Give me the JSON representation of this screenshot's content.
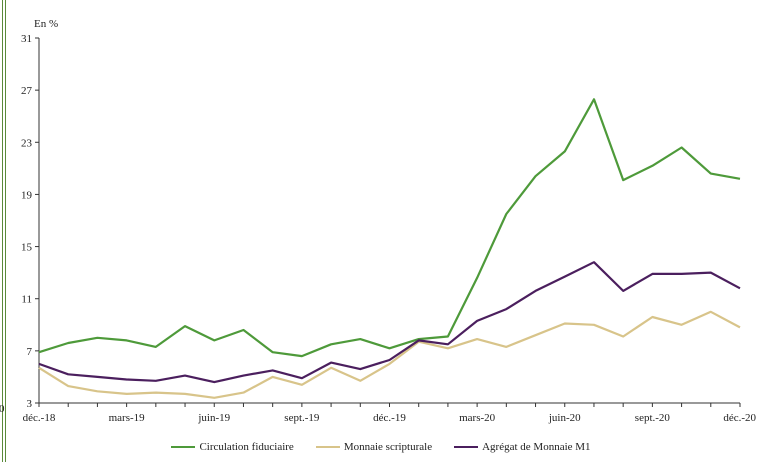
{
  "chart_data": {
    "type": "line",
    "unit_label": "En %",
    "y_ticks": [
      "3",
      "7",
      "11",
      "15",
      "19",
      "23",
      "27",
      "31"
    ],
    "ylim": [
      3,
      31
    ],
    "x_tick_labels": [
      "déc.-18",
      "mars-19",
      "juin-19",
      "sept.-19",
      "déc.-19",
      "mars-20",
      "juin-20",
      "sept.-20",
      "déc.-20"
    ],
    "x_months": [
      "déc.-18",
      "janv.-19",
      "févr.-19",
      "mars-19",
      "avr.-19",
      "mai-19",
      "juin-19",
      "juil.-19",
      "août-19",
      "sept.-19",
      "oct.-19",
      "nov.-19",
      "déc.-19",
      "janv.-20",
      "févr.-20",
      "mars-20",
      "avr.-20",
      "mai-20",
      "juin-20",
      "juil.-20",
      "août-20",
      "sept.-20",
      "oct.-20",
      "nov.-20",
      "déc.-20"
    ],
    "grid": false,
    "legend_position": "bottom",
    "series": [
      {
        "name": "Circulation fiduciaire",
        "color": "#4e9a3a",
        "values": [
          6.9,
          7.6,
          8.0,
          7.8,
          7.3,
          8.9,
          7.8,
          8.6,
          6.9,
          6.6,
          7.5,
          7.9,
          7.2,
          7.9,
          8.1,
          12.6,
          17.5,
          20.4,
          22.3,
          26.3,
          20.1,
          21.2,
          22.6,
          20.6,
          20.2
        ]
      },
      {
        "name": "Monnaie scripturale",
        "color": "#d8c48a",
        "values": [
          5.7,
          4.3,
          3.9,
          3.7,
          3.8,
          3.7,
          3.4,
          3.8,
          5.0,
          4.4,
          5.7,
          4.7,
          6.0,
          7.7,
          7.2,
          7.9,
          7.3,
          8.2,
          9.1,
          9.0,
          8.1,
          9.6,
          9.0,
          10.0,
          8.8
        ]
      },
      {
        "name": "Agrégat de Monnaie M1",
        "color": "#4b1f5e",
        "values": [
          6.0,
          5.2,
          5.0,
          4.8,
          4.7,
          5.1,
          4.6,
          5.1,
          5.5,
          4.9,
          6.1,
          5.6,
          6.3,
          7.8,
          7.5,
          9.3,
          10.2,
          11.6,
          12.7,
          13.8,
          11.6,
          12.9,
          12.9,
          13.0,
          11.8
        ]
      }
    ]
  },
  "legend": {
    "item1_label": "Circulation fiduciaire",
    "item2_label": "Monnaie scripturale",
    "item3_label": "Agrégat de Monnaie M1"
  },
  "left_axis_stub_label": "0"
}
